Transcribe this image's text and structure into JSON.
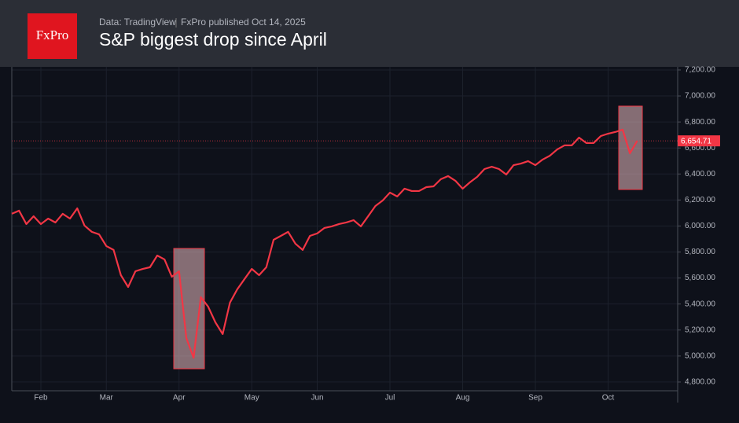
{
  "chart_data": {
    "type": "line",
    "logo": "FxPro",
    "source": "Data: TradingView",
    "published": "FxPro published Oct 14,  2025",
    "title": "S&P biggest drop since April",
    "categories": [
      null,
      null,
      null,
      null,
      "Feb",
      null,
      null,
      null,
      null,
      null,
      null,
      null,
      null,
      "Mar",
      null,
      null,
      null,
      null,
      null,
      null,
      null,
      null,
      null,
      "Apr",
      null,
      null,
      null,
      null,
      null,
      null,
      null,
      null,
      null,
      "May",
      null,
      null,
      null,
      null,
      null,
      null,
      null,
      null,
      "Jun",
      null,
      null,
      null,
      null,
      null,
      null,
      null,
      null,
      null,
      "Jul",
      null,
      null,
      null,
      null,
      null,
      null,
      null,
      null,
      null,
      "Aug",
      null,
      null,
      null,
      null,
      null,
      null,
      null,
      null,
      null,
      "Sep",
      null,
      null,
      null,
      null,
      null,
      null,
      null,
      null,
      null,
      "Oct",
      null,
      null,
      null,
      null
    ],
    "series": [
      {
        "name": "S&P 500",
        "color": "#f23645",
        "values": [
          6094,
          6118,
          6015,
          6075,
          6015,
          6057,
          6027,
          6094,
          6057,
          6136,
          6003,
          5955,
          5936,
          5846,
          5816,
          5622,
          5531,
          5652,
          5670,
          5683,
          5773,
          5743,
          5610,
          5652,
          5139,
          4987,
          5453,
          5380,
          5259,
          5169,
          5411,
          5513,
          5592,
          5670,
          5622,
          5683,
          5894,
          5924,
          5955,
          5864,
          5816,
          5924,
          5943,
          5985,
          5997,
          6015,
          6027,
          6045,
          5997,
          6075,
          6154,
          6196,
          6257,
          6227,
          6287,
          6269,
          6269,
          6299,
          6305,
          6360,
          6384,
          6348,
          6287,
          6336,
          6378,
          6438,
          6456,
          6438,
          6396,
          6468,
          6480,
          6499,
          6468,
          6511,
          6541,
          6589,
          6620,
          6620,
          6680,
          6638,
          6638,
          6692,
          6710,
          6723,
          6741,
          6559,
          6654.71
        ],
        "value_labels": [
          null,
          null,
          null,
          null,
          null,
          null,
          null,
          null,
          null,
          null,
          null,
          null,
          null,
          null,
          null,
          null,
          null,
          null,
          null,
          null,
          null,
          null,
          null,
          null,
          null,
          null,
          null,
          null,
          null,
          null,
          null,
          null,
          null,
          null,
          null,
          null,
          null,
          null,
          null,
          null,
          null,
          null,
          null,
          null,
          null,
          null,
          null,
          null,
          null,
          null,
          null,
          null,
          null,
          null,
          null,
          null,
          null,
          null,
          null,
          null,
          null,
          null,
          null,
          null,
          null,
          null,
          null,
          null,
          null,
          null,
          null,
          null,
          null,
          null,
          null,
          null,
          null,
          null,
          null,
          null,
          null,
          null,
          null,
          null,
          null,
          null,
          "6,654.71"
        ]
      }
    ],
    "ylim": [
      4733,
      7224
    ],
    "yticks": [
      {
        "value": 4800,
        "label": "4,800.00"
      },
      {
        "value": 5000,
        "label": "5,000.00"
      },
      {
        "value": 5200,
        "label": "5,200.00"
      },
      {
        "value": 5400,
        "label": "5,400.00"
      },
      {
        "value": 5600,
        "label": "5,600.00"
      },
      {
        "value": 5800,
        "label": "5,800.00"
      },
      {
        "value": 6000,
        "label": "6,000.00"
      },
      {
        "value": 6200,
        "label": "6,200.00"
      },
      {
        "value": 6400,
        "label": "6,400.00"
      },
      {
        "value": 6600,
        "label": "6,600.00"
      },
      {
        "value": 6800,
        "label": "6,800.00"
      },
      {
        "value": 7000,
        "label": "7,000.00"
      },
      {
        "value": 7200,
        "label": "7,200.00"
      }
    ],
    "grid": true
  }
}
